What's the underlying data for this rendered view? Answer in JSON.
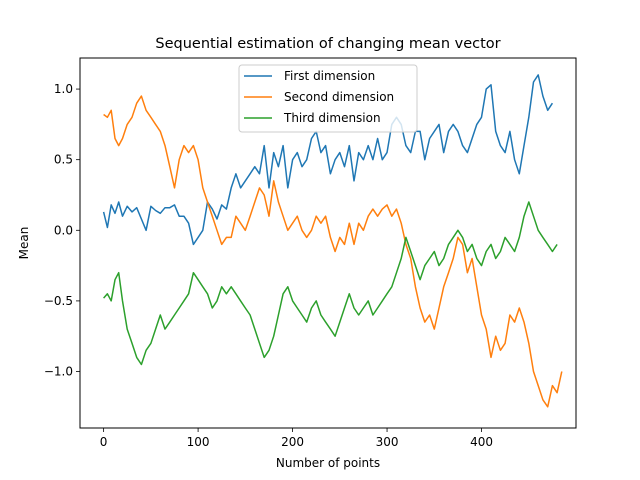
{
  "chart_data": {
    "type": "line",
    "title": "Sequential estimation of changing mean vector",
    "xlabel": "Number of points",
    "ylabel": "Mean",
    "xlim": [
      -25,
      500
    ],
    "ylim": [
      -1.4,
      1.22
    ],
    "xticks": [
      0,
      100,
      200,
      300,
      400
    ],
    "xtick_labels": [
      "0",
      "100",
      "200",
      "300",
      "400"
    ],
    "yticks": [
      -1.0,
      -0.5,
      0.0,
      0.5,
      1.0
    ],
    "ytick_labels": [
      "−1.0",
      "−0.5",
      "0.0",
      "0.5",
      "1.0"
    ],
    "grid": false,
    "legend_position": "upper center",
    "series": [
      {
        "name": "First dimension",
        "color": "#1f77b4",
        "points": [
          [
            0,
            0.13
          ],
          [
            4,
            0.02
          ],
          [
            8,
            0.18
          ],
          [
            12,
            0.12
          ],
          [
            16,
            0.2
          ],
          [
            20,
            0.1
          ],
          [
            25,
            0.17
          ],
          [
            30,
            0.13
          ],
          [
            35,
            0.16
          ],
          [
            40,
            0.08
          ],
          [
            45,
            0.0
          ],
          [
            50,
            0.17
          ],
          [
            55,
            0.14
          ],
          [
            60,
            0.12
          ],
          [
            65,
            0.16
          ],
          [
            70,
            0.16
          ],
          [
            75,
            0.18
          ],
          [
            80,
            0.1
          ],
          [
            85,
            0.1
          ],
          [
            90,
            0.05
          ],
          [
            95,
            -0.1
          ],
          [
            100,
            -0.05
          ],
          [
            105,
            0.0
          ],
          [
            110,
            0.2
          ],
          [
            115,
            0.15
          ],
          [
            120,
            0.08
          ],
          [
            125,
            0.18
          ],
          [
            130,
            0.15
          ],
          [
            135,
            0.3
          ],
          [
            140,
            0.4
          ],
          [
            145,
            0.3
          ],
          [
            150,
            0.35
          ],
          [
            155,
            0.4
          ],
          [
            160,
            0.45
          ],
          [
            165,
            0.4
          ],
          [
            170,
            0.6
          ],
          [
            175,
            0.3
          ],
          [
            180,
            0.55
          ],
          [
            185,
            0.45
          ],
          [
            190,
            0.6
          ],
          [
            195,
            0.3
          ],
          [
            200,
            0.5
          ],
          [
            205,
            0.55
          ],
          [
            210,
            0.45
          ],
          [
            215,
            0.5
          ],
          [
            220,
            0.65
          ],
          [
            225,
            0.7
          ],
          [
            230,
            0.55
          ],
          [
            235,
            0.6
          ],
          [
            240,
            0.4
          ],
          [
            245,
            0.5
          ],
          [
            250,
            0.55
          ],
          [
            255,
            0.45
          ],
          [
            260,
            0.6
          ],
          [
            265,
            0.35
          ],
          [
            270,
            0.55
          ],
          [
            275,
            0.5
          ],
          [
            280,
            0.6
          ],
          [
            285,
            0.5
          ],
          [
            290,
            0.65
          ],
          [
            295,
            0.5
          ],
          [
            300,
            0.55
          ],
          [
            305,
            0.75
          ],
          [
            310,
            0.8
          ],
          [
            315,
            0.75
          ],
          [
            320,
            0.6
          ],
          [
            325,
            0.55
          ],
          [
            330,
            0.7
          ],
          [
            335,
            0.7
          ],
          [
            340,
            0.5
          ],
          [
            345,
            0.65
          ],
          [
            350,
            0.7
          ],
          [
            355,
            0.75
          ],
          [
            360,
            0.55
          ],
          [
            365,
            0.7
          ],
          [
            370,
            0.75
          ],
          [
            375,
            0.7
          ],
          [
            380,
            0.6
          ],
          [
            385,
            0.55
          ],
          [
            390,
            0.65
          ],
          [
            395,
            0.75
          ],
          [
            400,
            0.8
          ],
          [
            405,
            1.0
          ],
          [
            410,
            1.03
          ],
          [
            415,
            0.7
          ],
          [
            420,
            0.6
          ],
          [
            425,
            0.55
          ],
          [
            430,
            0.7
          ],
          [
            435,
            0.5
          ],
          [
            440,
            0.4
          ],
          [
            445,
            0.6
          ],
          [
            450,
            0.8
          ],
          [
            455,
            1.05
          ],
          [
            460,
            1.1
          ],
          [
            465,
            0.95
          ],
          [
            470,
            0.85
          ],
          [
            475,
            0.9
          ]
        ]
      },
      {
        "name": "Second dimension",
        "color": "#ff7f0e",
        "points": [
          [
            0,
            0.82
          ],
          [
            4,
            0.8
          ],
          [
            8,
            0.85
          ],
          [
            12,
            0.65
          ],
          [
            16,
            0.6
          ],
          [
            20,
            0.65
          ],
          [
            25,
            0.75
          ],
          [
            30,
            0.8
          ],
          [
            35,
            0.9
          ],
          [
            40,
            0.95
          ],
          [
            45,
            0.85
          ],
          [
            50,
            0.8
          ],
          [
            55,
            0.75
          ],
          [
            60,
            0.7
          ],
          [
            65,
            0.6
          ],
          [
            70,
            0.45
          ],
          [
            75,
            0.3
          ],
          [
            80,
            0.5
          ],
          [
            85,
            0.6
          ],
          [
            90,
            0.55
          ],
          [
            95,
            0.6
          ],
          [
            100,
            0.5
          ],
          [
            105,
            0.3
          ],
          [
            110,
            0.2
          ],
          [
            115,
            0.1
          ],
          [
            120,
            0.0
          ],
          [
            125,
            -0.1
          ],
          [
            130,
            -0.05
          ],
          [
            135,
            -0.05
          ],
          [
            140,
            0.1
          ],
          [
            145,
            0.05
          ],
          [
            150,
            0.0
          ],
          [
            155,
            0.1
          ],
          [
            160,
            0.2
          ],
          [
            165,
            0.3
          ],
          [
            170,
            0.25
          ],
          [
            175,
            0.1
          ],
          [
            180,
            0.35
          ],
          [
            185,
            0.2
          ],
          [
            190,
            0.1
          ],
          [
            195,
            0.0
          ],
          [
            200,
            0.05
          ],
          [
            205,
            0.1
          ],
          [
            210,
            0.0
          ],
          [
            215,
            -0.05
          ],
          [
            220,
            0.0
          ],
          [
            225,
            0.1
          ],
          [
            230,
            0.05
          ],
          [
            235,
            0.1
          ],
          [
            240,
            -0.05
          ],
          [
            245,
            -0.15
          ],
          [
            250,
            -0.05
          ],
          [
            255,
            -0.1
          ],
          [
            260,
            0.05
          ],
          [
            265,
            -0.1
          ],
          [
            270,
            0.05
          ],
          [
            275,
            0.0
          ],
          [
            280,
            0.1
          ],
          [
            285,
            0.15
          ],
          [
            290,
            0.1
          ],
          [
            295,
            0.15
          ],
          [
            300,
            0.18
          ],
          [
            305,
            0.1
          ],
          [
            310,
            0.15
          ],
          [
            315,
            0.05
          ],
          [
            320,
            -0.1
          ],
          [
            325,
            -0.2
          ],
          [
            330,
            -0.4
          ],
          [
            335,
            -0.55
          ],
          [
            340,
            -0.65
          ],
          [
            345,
            -0.6
          ],
          [
            350,
            -0.7
          ],
          [
            355,
            -0.55
          ],
          [
            360,
            -0.4
          ],
          [
            365,
            -0.3
          ],
          [
            370,
            -0.2
          ],
          [
            375,
            -0.05
          ],
          [
            380,
            -0.1
          ],
          [
            385,
            -0.3
          ],
          [
            390,
            -0.2
          ],
          [
            395,
            -0.4
          ],
          [
            400,
            -0.6
          ],
          [
            405,
            -0.7
          ],
          [
            410,
            -0.9
          ],
          [
            415,
            -0.75
          ],
          [
            420,
            -0.85
          ],
          [
            425,
            -0.8
          ],
          [
            430,
            -0.6
          ],
          [
            435,
            -0.65
          ],
          [
            440,
            -0.55
          ],
          [
            445,
            -0.65
          ],
          [
            450,
            -0.8
          ],
          [
            455,
            -1.0
          ],
          [
            460,
            -1.1
          ],
          [
            465,
            -1.2
          ],
          [
            470,
            -1.25
          ],
          [
            475,
            -1.1
          ],
          [
            480,
            -1.15
          ],
          [
            485,
            -1.0
          ]
        ]
      },
      {
        "name": "Third dimension",
        "color": "#2ca02c",
        "points": [
          [
            0,
            -0.48
          ],
          [
            4,
            -0.45
          ],
          [
            8,
            -0.5
          ],
          [
            12,
            -0.35
          ],
          [
            16,
            -0.3
          ],
          [
            20,
            -0.5
          ],
          [
            25,
            -0.7
          ],
          [
            30,
            -0.8
          ],
          [
            35,
            -0.9
          ],
          [
            40,
            -0.95
          ],
          [
            45,
            -0.85
          ],
          [
            50,
            -0.8
          ],
          [
            55,
            -0.7
          ],
          [
            60,
            -0.6
          ],
          [
            65,
            -0.7
          ],
          [
            70,
            -0.65
          ],
          [
            75,
            -0.6
          ],
          [
            80,
            -0.55
          ],
          [
            85,
            -0.5
          ],
          [
            90,
            -0.45
          ],
          [
            95,
            -0.3
          ],
          [
            100,
            -0.35
          ],
          [
            105,
            -0.4
          ],
          [
            110,
            -0.45
          ],
          [
            115,
            -0.55
          ],
          [
            120,
            -0.5
          ],
          [
            125,
            -0.4
          ],
          [
            130,
            -0.45
          ],
          [
            135,
            -0.4
          ],
          [
            140,
            -0.45
          ],
          [
            145,
            -0.5
          ],
          [
            150,
            -0.55
          ],
          [
            155,
            -0.6
          ],
          [
            160,
            -0.7
          ],
          [
            165,
            -0.8
          ],
          [
            170,
            -0.9
          ],
          [
            175,
            -0.85
          ],
          [
            180,
            -0.75
          ],
          [
            185,
            -0.6
          ],
          [
            190,
            -0.45
          ],
          [
            195,
            -0.4
          ],
          [
            200,
            -0.5
          ],
          [
            205,
            -0.55
          ],
          [
            210,
            -0.6
          ],
          [
            215,
            -0.65
          ],
          [
            220,
            -0.55
          ],
          [
            225,
            -0.5
          ],
          [
            230,
            -0.6
          ],
          [
            235,
            -0.65
          ],
          [
            240,
            -0.7
          ],
          [
            245,
            -0.75
          ],
          [
            250,
            -0.65
          ],
          [
            255,
            -0.55
          ],
          [
            260,
            -0.45
          ],
          [
            265,
            -0.55
          ],
          [
            270,
            -0.6
          ],
          [
            275,
            -0.55
          ],
          [
            280,
            -0.5
          ],
          [
            285,
            -0.6
          ],
          [
            290,
            -0.55
          ],
          [
            295,
            -0.5
          ],
          [
            300,
            -0.45
          ],
          [
            305,
            -0.4
          ],
          [
            310,
            -0.3
          ],
          [
            315,
            -0.2
          ],
          [
            320,
            -0.05
          ],
          [
            325,
            -0.15
          ],
          [
            330,
            -0.25
          ],
          [
            335,
            -0.35
          ],
          [
            340,
            -0.25
          ],
          [
            345,
            -0.2
          ],
          [
            350,
            -0.15
          ],
          [
            355,
            -0.25
          ],
          [
            360,
            -0.2
          ],
          [
            365,
            -0.1
          ],
          [
            370,
            -0.05
          ],
          [
            375,
            0.0
          ],
          [
            380,
            -0.05
          ],
          [
            385,
            -0.15
          ],
          [
            390,
            -0.1
          ],
          [
            395,
            -0.2
          ],
          [
            400,
            -0.25
          ],
          [
            405,
            -0.15
          ],
          [
            410,
            -0.1
          ],
          [
            415,
            -0.2
          ],
          [
            420,
            -0.15
          ],
          [
            425,
            -0.05
          ],
          [
            430,
            -0.1
          ],
          [
            435,
            -0.15
          ],
          [
            440,
            -0.05
          ],
          [
            445,
            0.1
          ],
          [
            450,
            0.2
          ],
          [
            455,
            0.1
          ],
          [
            460,
            0.0
          ],
          [
            465,
            -0.05
          ],
          [
            470,
            -0.1
          ],
          [
            475,
            -0.15
          ],
          [
            480,
            -0.1
          ]
        ]
      }
    ]
  }
}
